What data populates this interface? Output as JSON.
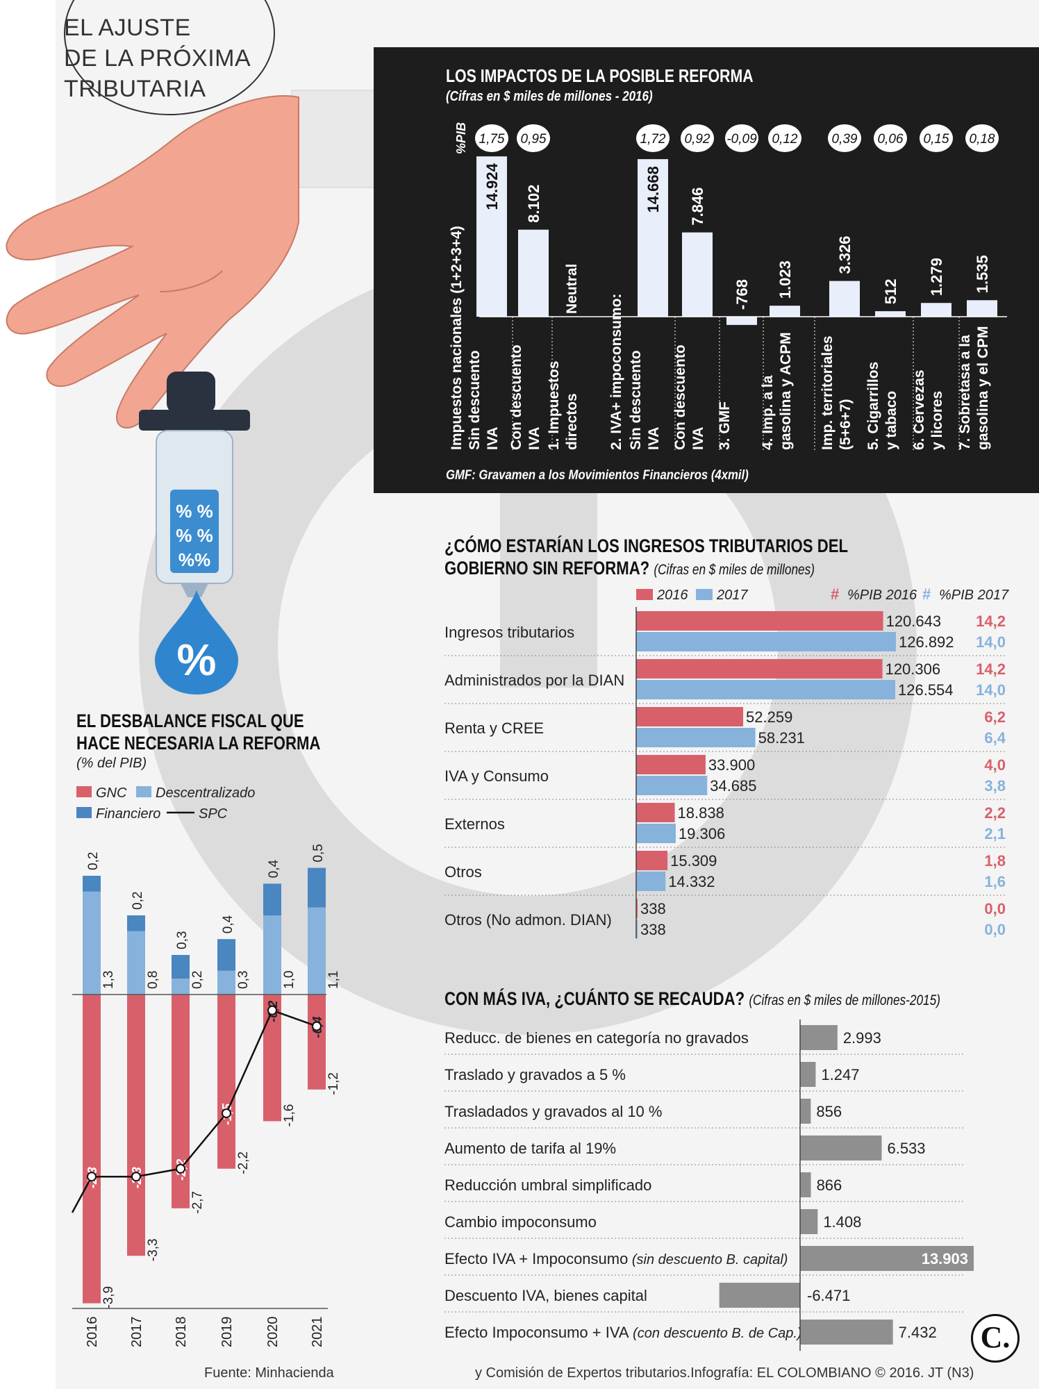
{
  "header": {
    "title_lines": [
      "EL AJUSTE",
      "DE LA PRÓXIMA",
      "TRIBUTARIA"
    ]
  },
  "colors": {
    "red": "#d8606b",
    "blue_light": "#86b2dc",
    "blue_dark": "#4a86c0",
    "gray": "#8f8f8f",
    "panel_bg": "#1d1d1d",
    "panel_bar": "#e8eefa"
  },
  "icons": {
    "hand": "hand-illustration",
    "dropper": "dropper-illustration",
    "drop": "percent-drop-icon",
    "logo": "el-colombiano-logo"
  },
  "chart_data": [
    {
      "id": "impactos",
      "type": "bar",
      "title": "LOS IMPACTOS DE LA POSIBLE REFORMA",
      "subtitle": "(Cifras en $ miles de millones - 2016)",
      "pib_label": "%PIB",
      "group_labels": {
        "nacionales": "Impuestos nacionales (1+2+3+4)",
        "iva": "2. IVA+ impoconsumo:"
      },
      "neutral_label": "Neutral",
      "note": "GMF: Gravamen a los Movimientos Financieros (4xmil)",
      "bars": [
        {
          "label_lines": [
            "Sin descuento",
            "IVA"
          ],
          "value": 14924,
          "value_label": "14.924",
          "pib": "1,75"
        },
        {
          "label_lines": [
            "Con descuento",
            "IVA"
          ],
          "value": 8102,
          "value_label": "8.102",
          "pib": "0,95"
        },
        {
          "label_lines": [
            "1. Impuestos",
            "directos"
          ],
          "value": 0,
          "value_label": "",
          "pib": ""
        },
        {
          "label_lines": [
            "Sin descuento",
            "IVA"
          ],
          "value": 14668,
          "value_label": "14.668",
          "pib": "1,72"
        },
        {
          "label_lines": [
            "Con descuento",
            "IVA"
          ],
          "value": 7846,
          "value_label": "7.846",
          "pib": "0,92"
        },
        {
          "label_lines": [
            "3. GMF"
          ],
          "value": -768,
          "value_label": "-768",
          "pib": "-0,09"
        },
        {
          "label_lines": [
            "4. Imp. a la",
            "gasolina y ACPM"
          ],
          "value": 1023,
          "value_label": "1.023",
          "pib": "0,12"
        },
        {
          "label_lines": [
            "Imp. territoriales",
            "(5+6+7)"
          ],
          "value": 3326,
          "value_label": "3.326",
          "pib": "0,39"
        },
        {
          "label_lines": [
            "5. Cigarrillos",
            "y tabaco"
          ],
          "value": 512,
          "value_label": "512",
          "pib": "0,06"
        },
        {
          "label_lines": [
            "6. Cervezas",
            "y licores"
          ],
          "value": 1279,
          "value_label": "1.279",
          "pib": "0,15"
        },
        {
          "label_lines": [
            "7. Sobretasa a la",
            "gasolina y el CPM"
          ],
          "value": 1535,
          "value_label": "1.535",
          "pib": "0,18"
        }
      ]
    },
    {
      "id": "ingresos",
      "type": "bar",
      "title_lines": [
        "¿CÓMO ESTARÍAN LOS INGRESOS TRIBUTARIOS DEL",
        "GOBIERNO SIN REFORMA?"
      ],
      "subtitle": "(Cifras en $ miles de millones)",
      "legend": {
        "s2016": "2016",
        "s2017": "2017",
        "hash": "#",
        "pib2016": "%PIB 2016",
        "pib2017": "%PIB 2017"
      },
      "categories": [
        "Ingresos tributarios",
        "Administrados por la DIAN",
        "Renta y CREE",
        "IVA y Consumo",
        "Externos",
        "Otros",
        "Otros (No admon. DIAN)"
      ],
      "series": [
        {
          "name": "2016",
          "values": [
            120643,
            120306,
            52259,
            33900,
            18838,
            15309,
            338
          ],
          "labels": [
            "120.643",
            "120.306",
            "52.259",
            "33.900",
            "18.838",
            "15.309",
            "338"
          ],
          "pib": [
            "14,2",
            "14,2",
            "6,2",
            "4,0",
            "2,2",
            "1,8",
            "0,0"
          ]
        },
        {
          "name": "2017",
          "values": [
            126892,
            126554,
            58231,
            34685,
            19306,
            14332,
            338
          ],
          "labels": [
            "126.892",
            "126.554",
            "58.231",
            "34.685",
            "19.306",
            "14.332",
            "338"
          ],
          "pib": [
            "14,0",
            "14,0",
            "6,4",
            "3,8",
            "2,1",
            "1,6",
            "0,0"
          ]
        }
      ]
    },
    {
      "id": "iva",
      "type": "bar",
      "title": "CON MÁS IVA, ¿CUÁNTO SE RECAUDA?",
      "subtitle": "(Cifras en $ miles de millones-2015)",
      "items": [
        {
          "label": "Reducc. de bienes en categoría no gravados",
          "extra": "",
          "value": 2993,
          "value_label": "2.993"
        },
        {
          "label": "Traslado y gravados a 5 %",
          "extra": "",
          "value": 1247,
          "value_label": "1.247"
        },
        {
          "label": "Trasladados y gravados al 10 %",
          "extra": "",
          "value": 856,
          "value_label": "856"
        },
        {
          "label": "Aumento de tarifa al 19%",
          "extra": "",
          "value": 6533,
          "value_label": "6.533"
        },
        {
          "label": "Reducción umbral simplificado",
          "extra": "",
          "value": 866,
          "value_label": "866"
        },
        {
          "label": "Cambio impoconsumo",
          "extra": "",
          "value": 1408,
          "value_label": "1.408"
        },
        {
          "label": "Efecto IVA + Impoconsumo",
          "extra": "(sin descuento B. capital)",
          "value": 13903,
          "value_label": "13.903"
        },
        {
          "label": "Descuento IVA, bienes capital",
          "extra": "",
          "value": -6471,
          "value_label": "-6.471"
        },
        {
          "label": "Efecto Impoconsumo + IVA",
          "extra": "(con descuento B. de Cap.)",
          "value": 7432,
          "value_label": "7.432"
        }
      ]
    },
    {
      "id": "desbalance",
      "type": "bar",
      "title_lines": [
        "EL DESBALANCE FISCAL QUE",
        "HACE NECESARIA LA REFORMA"
      ],
      "subtitle": "(% del PIB)",
      "legend": {
        "gnc": "GNC",
        "desc": "Descentralizado",
        "fin": "Financiero",
        "spc": "SPC"
      },
      "categories": [
        "2016",
        "2017",
        "2018",
        "2019",
        "2020",
        "2021"
      ],
      "series": [
        {
          "name": "GNC",
          "values": [
            -3.9,
            -3.3,
            -2.7,
            -2.2,
            -1.6,
            -1.2
          ],
          "labels": [
            "-3,9",
            "-3,3",
            "-2,7",
            "-2,2",
            "-1,6",
            "-1,2"
          ]
        },
        {
          "name": "Descentralizado",
          "values": [
            1.3,
            0.8,
            0.2,
            0.3,
            1.0,
            1.1
          ],
          "labels": [
            "1,3",
            "0,8",
            "0,2",
            "0,3",
            "1,0",
            "1,1"
          ]
        },
        {
          "name": "Financiero",
          "values": [
            0.2,
            0.2,
            0.3,
            0.4,
            0.4,
            0.5
          ],
          "labels": [
            "0,2",
            "0,2",
            "0,3",
            "0,4",
            "0,4",
            "0,5"
          ]
        },
        {
          "name": "SPC",
          "values": [
            -2.3,
            -2.3,
            -2.2,
            -1.5,
            -0.2,
            -0.4
          ],
          "labels": [
            "-2,3",
            "-2,3",
            "-2,2",
            "-1,5",
            "-0,2",
            "-0,4"
          ]
        }
      ]
    }
  ],
  "footer": {
    "left": "Fuente: Minhacienda",
    "right": "y Comisión de Expertos tributarios.Infografía: EL COLOMBIANO © 2016. JT (N3)",
    "logo": "C."
  }
}
